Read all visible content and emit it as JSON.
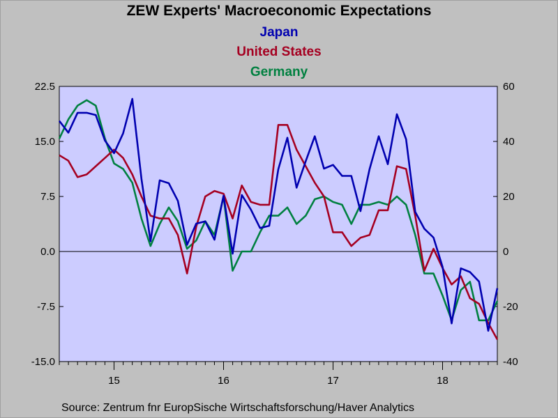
{
  "chart_data": {
    "type": "line",
    "title": "ZEW Experts' Macroeconomic Expectations",
    "legend_placement": "top-center",
    "grid": false,
    "x_range": [
      2014.5,
      2018.5
    ],
    "y_left": {
      "ylim": [
        -15,
        22.5
      ],
      "ticks": [
        "22.5",
        "15.0",
        "7.5",
        "0.0",
        "-7.5",
        "-15.0"
      ]
    },
    "y_right": {
      "ylim": [
        -40,
        60
      ],
      "ticks": [
        "60",
        "40",
        "20",
        "0",
        "-20",
        "-40"
      ]
    },
    "x_tick_labels": [
      {
        "label": "15",
        "x": 2015.0
      },
      {
        "label": "16",
        "x": 2016.0
      },
      {
        "label": "17",
        "x": 2017.0
      },
      {
        "label": "18",
        "x": 2018.0
      }
    ],
    "series": [
      {
        "name": "Japan",
        "color": "#0000b0",
        "axis": "left",
        "x": [
          2014.5,
          2014.583,
          2014.667,
          2014.75,
          2014.833,
          2014.917,
          2015.0,
          2015.083,
          2015.167,
          2015.25,
          2015.333,
          2015.417,
          2015.5,
          2015.583,
          2015.667,
          2015.75,
          2015.833,
          2015.917,
          2016.0,
          2016.083,
          2016.167,
          2016.25,
          2016.333,
          2016.417,
          2016.5,
          2016.583,
          2016.667,
          2016.75,
          2016.833,
          2016.917,
          2017.0,
          2017.083,
          2017.167,
          2017.25,
          2017.333,
          2017.417,
          2017.5,
          2017.583,
          2017.667,
          2017.75,
          2017.833,
          2017.917,
          2018.0,
          2018.083,
          2018.167,
          2018.25,
          2018.333,
          2018.417,
          2018.5
        ],
        "values": [
          17.8,
          16.2,
          18.9,
          18.9,
          18.6,
          15.1,
          13.4,
          16.1,
          20.8,
          9.9,
          1.4,
          9.7,
          9.3,
          6.9,
          0.9,
          3.8,
          4.1,
          1.6,
          7.6,
          -0.3,
          7.7,
          5.7,
          3.2,
          3.5,
          11.2,
          15.5,
          8.7,
          12.3,
          15.7,
          11.3,
          11.8,
          10.3,
          10.3,
          5.5,
          11.2,
          15.7,
          11.9,
          18.7,
          15.3,
          5.4,
          3.1,
          1.9,
          -2.1,
          -9.8,
          -2.3,
          -2.8,
          -4.1,
          -10.8,
          -5.0
        ]
      },
      {
        "name": "United States",
        "color": "#a50021",
        "axis": "right",
        "x": [
          2014.5,
          2014.583,
          2014.667,
          2014.75,
          2014.833,
          2014.917,
          2015.0,
          2015.083,
          2015.167,
          2015.25,
          2015.333,
          2015.417,
          2015.5,
          2015.583,
          2015.667,
          2015.75,
          2015.833,
          2015.917,
          2016.0,
          2016.083,
          2016.167,
          2016.25,
          2016.333,
          2016.417,
          2016.5,
          2016.583,
          2016.667,
          2016.75,
          2016.833,
          2016.917,
          2017.0,
          2017.083,
          2017.167,
          2017.25,
          2017.333,
          2017.417,
          2017.5,
          2017.583,
          2017.667,
          2017.75,
          2017.833,
          2017.917,
          2018.0,
          2018.083,
          2018.167,
          2018.25,
          2018.333,
          2018.417,
          2018.5
        ],
        "values": [
          35,
          33,
          27,
          28,
          31,
          34,
          37,
          34,
          28,
          20,
          13,
          12,
          12,
          6,
          -8,
          9,
          20,
          22,
          21,
          12,
          24,
          18,
          17,
          17,
          46,
          46,
          37,
          31,
          25,
          20,
          7,
          7,
          2,
          5,
          6,
          15,
          15,
          31,
          30,
          13,
          -7,
          1,
          -6,
          -12,
          -9,
          -17,
          -19,
          -26,
          -32
        ]
      },
      {
        "name": "Germany",
        "color": "#008040",
        "axis": "right",
        "x": [
          2014.5,
          2014.583,
          2014.667,
          2014.75,
          2014.833,
          2014.917,
          2015.0,
          2015.083,
          2015.167,
          2015.25,
          2015.333,
          2015.417,
          2015.5,
          2015.583,
          2015.667,
          2015.75,
          2015.833,
          2015.917,
          2016.0,
          2016.083,
          2016.167,
          2016.25,
          2016.333,
          2016.417,
          2016.5,
          2016.583,
          2016.667,
          2016.75,
          2016.833,
          2016.917,
          2017.0,
          2017.083,
          2017.167,
          2017.25,
          2017.333,
          2017.417,
          2017.5,
          2017.583,
          2017.667,
          2017.75,
          2017.833,
          2017.917,
          2018.0,
          2018.083,
          2018.167,
          2018.25,
          2018.333,
          2018.417,
          2018.5
        ],
        "values": [
          41,
          48,
          53,
          55,
          53,
          41,
          32,
          30,
          25,
          12,
          2,
          10,
          16,
          11,
          1,
          4,
          11,
          6,
          20,
          -7,
          0,
          0,
          7,
          13,
          13,
          16,
          10,
          13,
          19,
          20,
          18,
          17,
          10,
          17,
          17,
          18,
          17,
          20,
          17,
          6,
          -8,
          -8,
          -16,
          -25,
          -14,
          -11,
          -25,
          -25,
          -18
        ]
      }
    ],
    "source": "Source:  Zentrum fnr EuropSische Wirtschaftsforschung/Haver Analytics"
  }
}
